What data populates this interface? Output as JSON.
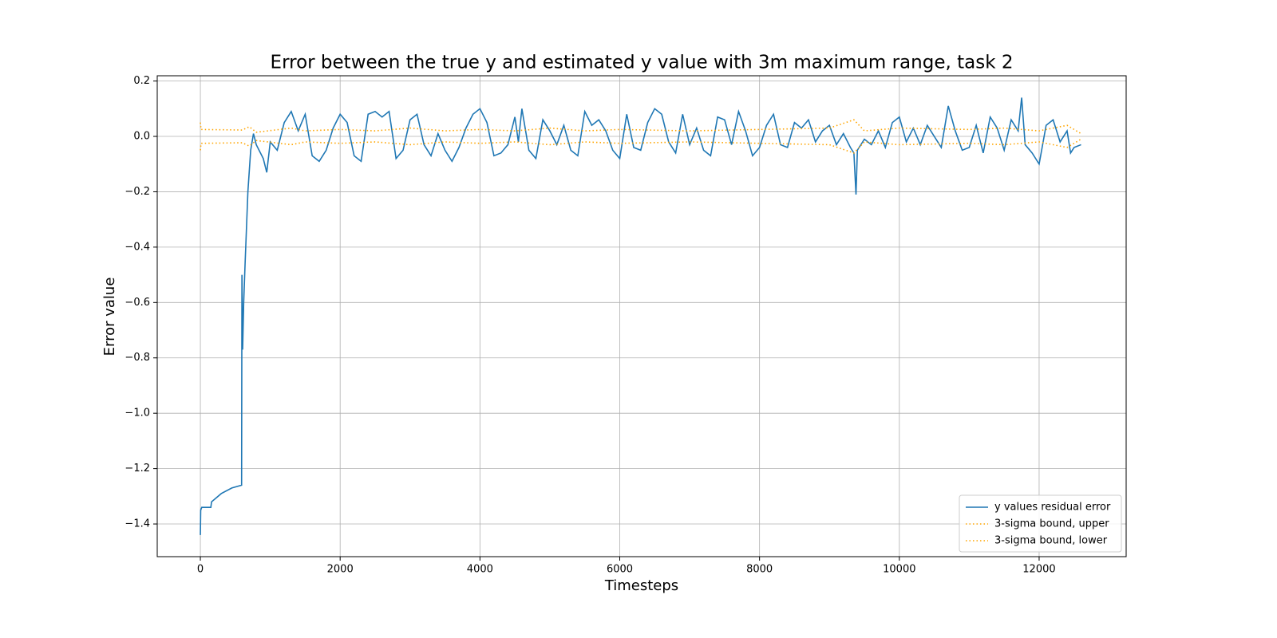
{
  "chart_data": {
    "type": "line",
    "title": "Error between the true y and estimated y value with 3m maximum range, task 2",
    "x_label": "Timesteps",
    "y_label": "Error value",
    "xlim": [
      -617,
      13245
    ],
    "ylim": [
      -1.518,
      0.219
    ],
    "xticks": [
      0,
      2000,
      4000,
      6000,
      8000,
      10000,
      12000
    ],
    "yticks": [
      {
        "value": 0.2,
        "label": "0.2"
      },
      {
        "value": 0.0,
        "label": "0.0"
      },
      {
        "value": -0.2,
        "label": "−0.2"
      },
      {
        "value": -0.4,
        "label": "−0.4"
      },
      {
        "value": -0.6,
        "label": "−0.6"
      },
      {
        "value": -0.8,
        "label": "−0.8"
      },
      {
        "value": -1.0,
        "label": "−1.0"
      },
      {
        "value": -1.2,
        "label": "−1.2"
      },
      {
        "value": -1.4,
        "label": "−1.4"
      }
    ],
    "grid": true,
    "legend": "lower right",
    "series": [
      {
        "name": "y values residual error",
        "color": "#1f77b4",
        "style": "solid",
        "x": [
          0,
          5,
          20,
          150,
          160,
          300,
          450,
          590,
          595,
          605,
          620,
          640,
          680,
          720,
          760,
          800,
          900,
          950,
          1000,
          1100,
          1200,
          1300,
          1400,
          1500,
          1600,
          1700,
          1800,
          1900,
          2000,
          2100,
          2200,
          2300,
          2400,
          2500,
          2600,
          2700,
          2800,
          2900,
          3000,
          3100,
          3200,
          3300,
          3400,
          3500,
          3600,
          3700,
          3800,
          3900,
          4000,
          4100,
          4200,
          4300,
          4400,
          4500,
          4550,
          4600,
          4700,
          4800,
          4900,
          5000,
          5100,
          5200,
          5300,
          5400,
          5500,
          5600,
          5700,
          5800,
          5900,
          6000,
          6100,
          6200,
          6300,
          6400,
          6500,
          6600,
          6700,
          6800,
          6900,
          7000,
          7100,
          7200,
          7300,
          7400,
          7500,
          7600,
          7700,
          7800,
          7900,
          8000,
          8100,
          8200,
          8300,
          8400,
          8500,
          8600,
          8700,
          8800,
          8900,
          9000,
          9100,
          9200,
          9300,
          9350,
          9380,
          9400,
          9500,
          9600,
          9700,
          9800,
          9900,
          10000,
          10100,
          10200,
          10300,
          10400,
          10500,
          10600,
          10700,
          10800,
          10900,
          11000,
          11100,
          11200,
          11300,
          11400,
          11500,
          11600,
          11700,
          11750,
          11800,
          11900,
          12000,
          12100,
          12200,
          12300,
          12400,
          12450,
          12500,
          12600
        ],
        "values": [
          -1.44,
          -1.35,
          -1.34,
          -1.34,
          -1.32,
          -1.29,
          -1.27,
          -1.26,
          -0.5,
          -0.77,
          -0.6,
          -0.46,
          -0.2,
          -0.05,
          0.01,
          -0.03,
          -0.08,
          -0.13,
          -0.02,
          -0.05,
          0.05,
          0.09,
          0.02,
          0.08,
          -0.07,
          -0.09,
          -0.05,
          0.03,
          0.08,
          0.05,
          -0.07,
          -0.09,
          0.08,
          0.09,
          0.07,
          0.09,
          -0.08,
          -0.05,
          0.06,
          0.08,
          -0.03,
          -0.07,
          0.01,
          -0.05,
          -0.09,
          -0.04,
          0.03,
          0.08,
          0.1,
          0.05,
          -0.07,
          -0.06,
          -0.03,
          0.07,
          -0.02,
          0.1,
          -0.05,
          -0.08,
          0.06,
          0.02,
          -0.03,
          0.04,
          -0.05,
          -0.07,
          0.09,
          0.04,
          0.06,
          0.02,
          -0.05,
          -0.08,
          0.08,
          -0.04,
          -0.05,
          0.05,
          0.1,
          0.08,
          -0.02,
          -0.06,
          0.08,
          -0.03,
          0.03,
          -0.05,
          -0.07,
          0.07,
          0.06,
          -0.03,
          0.09,
          0.02,
          -0.07,
          -0.04,
          0.04,
          0.08,
          -0.03,
          -0.04,
          0.05,
          0.03,
          0.06,
          -0.02,
          0.02,
          0.04,
          -0.03,
          0.01,
          -0.04,
          -0.06,
          -0.21,
          -0.05,
          -0.01,
          -0.03,
          0.02,
          -0.04,
          0.05,
          0.07,
          -0.02,
          0.03,
          -0.03,
          0.04,
          0.0,
          -0.04,
          0.11,
          0.02,
          -0.05,
          -0.04,
          0.04,
          -0.06,
          0.07,
          0.03,
          -0.05,
          0.06,
          0.02,
          0.14,
          -0.03,
          -0.06,
          -0.1,
          0.04,
          0.06,
          -0.02,
          0.02,
          -0.06,
          -0.04,
          -0.03
        ]
      },
      {
        "name": "3-sigma bound, upper",
        "color": "#ffa500",
        "style": "dotted",
        "x": [
          0,
          10,
          300,
          600,
          700,
          800,
          1300,
          1500,
          2000,
          2500,
          3000,
          3500,
          4000,
          4500,
          5000,
          5500,
          6000,
          7000,
          8000,
          9000,
          9350,
          9500,
          10000,
          11000,
          11500,
          12000,
          12400,
          12600
        ],
        "values": [
          0.05,
          0.025,
          0.024,
          0.023,
          0.035,
          0.015,
          0.03,
          0.02,
          0.025,
          0.02,
          0.03,
          0.02,
          0.025,
          0.02,
          0.03,
          0.02,
          0.025,
          0.02,
          0.025,
          0.03,
          0.06,
          0.02,
          0.03,
          0.025,
          0.03,
          0.02,
          0.04,
          0.01
        ]
      },
      {
        "name": "3-sigma bound, lower",
        "color": "#ffa500",
        "style": "dotted",
        "x": [
          0,
          10,
          300,
          600,
          700,
          800,
          1300,
          1500,
          2000,
          2500,
          3000,
          3500,
          4000,
          4500,
          5000,
          5500,
          6000,
          7000,
          8000,
          9000,
          9350,
          9500,
          10000,
          11000,
          11500,
          12000,
          12400,
          12600
        ],
        "values": [
          -0.05,
          -0.025,
          -0.024,
          -0.023,
          -0.035,
          -0.015,
          -0.03,
          -0.02,
          -0.025,
          -0.02,
          -0.03,
          -0.02,
          -0.025,
          -0.02,
          -0.03,
          -0.02,
          -0.025,
          -0.02,
          -0.025,
          -0.03,
          -0.06,
          -0.02,
          -0.03,
          -0.025,
          -0.03,
          -0.02,
          -0.04,
          -0.01
        ]
      }
    ]
  }
}
